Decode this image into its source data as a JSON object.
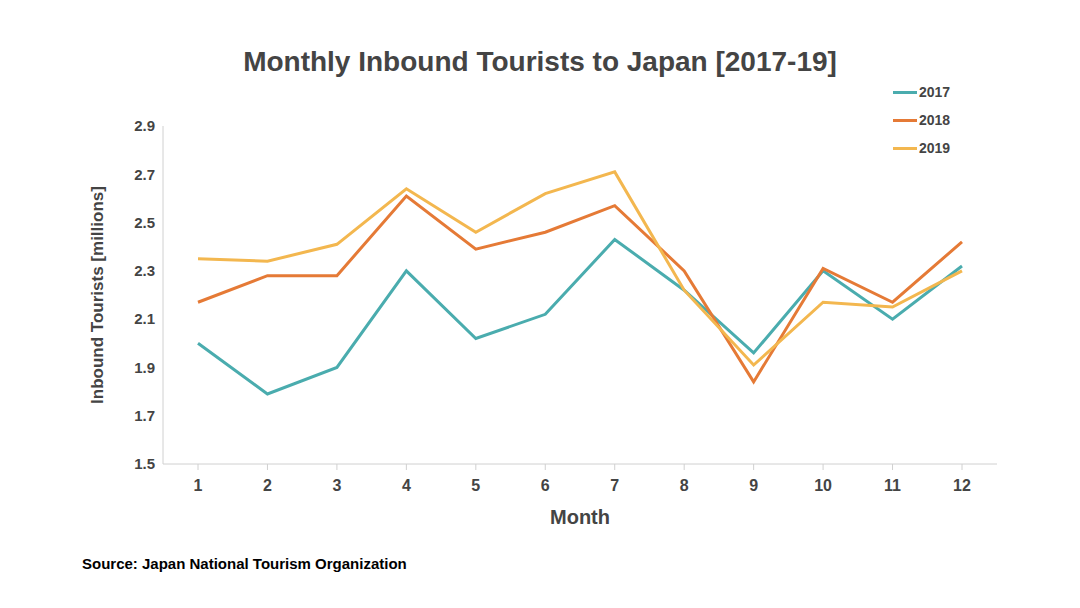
{
  "chart_data": {
    "type": "line",
    "title": "Monthly Inbound Tourists to Japan [2017-19]",
    "x_label": "Month",
    "y_label": "Inbound Tourists [millions]",
    "source": "Source: Japan National Tourism Organization",
    "categories": [
      "1",
      "2",
      "3",
      "4",
      "5",
      "6",
      "7",
      "8",
      "9",
      "10",
      "11",
      "12"
    ],
    "series": [
      {
        "name": "2017",
        "color": "#4aacae",
        "values": [
          2.0,
          1.79,
          1.9,
          2.3,
          2.02,
          2.12,
          2.43,
          2.22,
          1.96,
          2.3,
          2.1,
          2.32
        ]
      },
      {
        "name": "2018",
        "color": "#e57a36",
        "values": [
          2.17,
          2.28,
          2.28,
          2.61,
          2.39,
          2.46,
          2.57,
          2.3,
          1.84,
          2.31,
          2.17,
          2.42
        ]
      },
      {
        "name": "2019",
        "color": "#f3b74f",
        "values": [
          2.35,
          2.34,
          2.41,
          2.64,
          2.46,
          2.62,
          2.71,
          2.22,
          1.91,
          2.17,
          2.15,
          2.3
        ]
      }
    ],
    "ylim": [
      1.5,
      2.9
    ],
    "yticks": [
      1.5,
      1.7,
      1.9,
      2.1,
      2.3,
      2.5,
      2.7,
      2.9
    ],
    "grid": false,
    "legend": "top right"
  }
}
